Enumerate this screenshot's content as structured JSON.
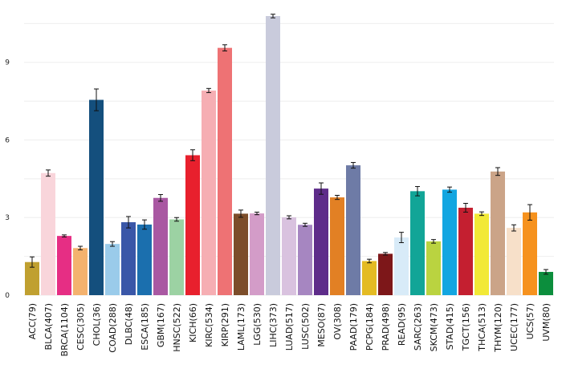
{
  "chart_data": {
    "type": "bar",
    "title": "",
    "xlabel": "",
    "ylabel": "",
    "ylim": [
      0,
      11.1
    ],
    "yticks": [
      0,
      3,
      6,
      9
    ],
    "grid": "horizontal",
    "error_bars": true,
    "categories": [
      "ACC(79)",
      "BLCA(407)",
      "BRCA(1104)",
      "CESC(305)",
      "CHOL(36)",
      "COAD(288)",
      "DLBC(48)",
      "ESCA(185)",
      "GBM(167)",
      "HNSC(522)",
      "KICH(66)",
      "KIRC(534)",
      "KIRP(291)",
      "LAML(173)",
      "LGG(530)",
      "LIHC(373)",
      "LUAD(517)",
      "LUSC(502)",
      "MESO(87)",
      "OV(308)",
      "PAAD(179)",
      "PCPG(184)",
      "PRAD(498)",
      "READ(95)",
      "SARC(263)",
      "SKCM(473)",
      "STAD(415)",
      "TGCT(156)",
      "THCA(513)",
      "THYM(120)",
      "UCEC(177)",
      "UCS(57)",
      "UVM(80)"
    ],
    "values": [
      1.28,
      4.72,
      2.29,
      1.82,
      7.55,
      1.98,
      2.82,
      2.73,
      3.76,
      2.93,
      5.41,
      7.91,
      9.56,
      3.15,
      3.16,
      10.79,
      3.01,
      2.72,
      4.12,
      3.78,
      5.02,
      1.32,
      1.6,
      2.23,
      4.02,
      2.08,
      4.08,
      3.38,
      3.15,
      4.78,
      2.6,
      3.2,
      0.9
    ],
    "errors": [
      0.2,
      0.12,
      0.04,
      0.07,
      0.42,
      0.09,
      0.22,
      0.18,
      0.13,
      0.07,
      0.21,
      0.08,
      0.12,
      0.14,
      0.05,
      0.07,
      0.06,
      0.06,
      0.22,
      0.08,
      0.11,
      0.07,
      0.05,
      0.2,
      0.18,
      0.07,
      0.1,
      0.17,
      0.07,
      0.15,
      0.12,
      0.3,
      0.09
    ],
    "colors": [
      "#C0A030",
      "#F9D5DB",
      "#E62E84",
      "#F4B26E",
      "#144F7D",
      "#9ACBEA",
      "#3A57A8",
      "#1B6FAE",
      "#A958A2",
      "#9CD2A3",
      "#E8202D",
      "#F6AEB3",
      "#EE7274",
      "#7C4D2A",
      "#D39CC8",
      "#C9CBDC",
      "#D9C2DF",
      "#A686C1",
      "#5E2C8A",
      "#E28024",
      "#6E7BA6",
      "#E4BB23",
      "#7D1719",
      "#D8EBF8",
      "#12A597",
      "#BAD340",
      "#13A6E1",
      "#C41F30",
      "#F2E936",
      "#CBA488",
      "#F7E0C9",
      "#F6921E",
      "#0C8E3D"
    ]
  }
}
